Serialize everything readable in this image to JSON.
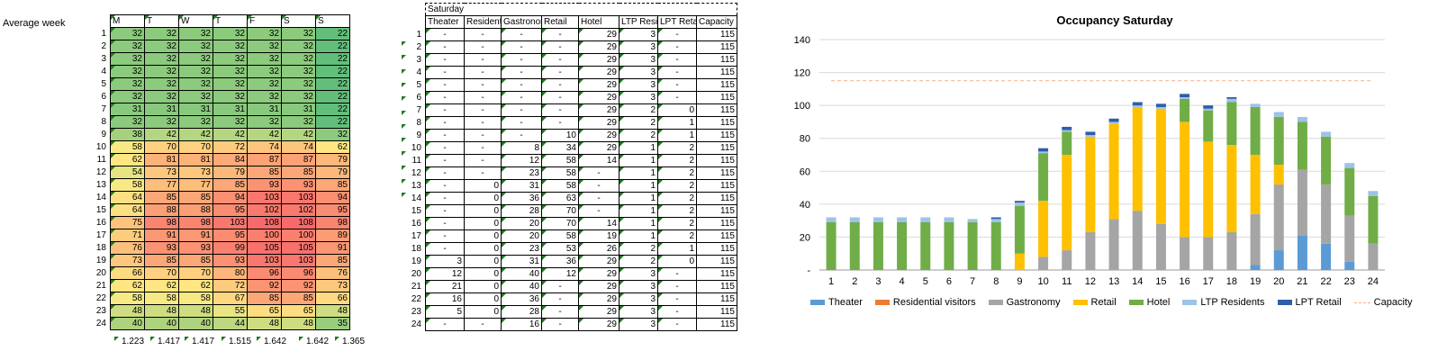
{
  "sheet_label": "Average week",
  "avg_table": {
    "days": [
      "M",
      "T",
      "W",
      "T",
      "F",
      "S",
      "S"
    ],
    "rows": [
      [
        32,
        32,
        32,
        32,
        32,
        32,
        22
      ],
      [
        32,
        32,
        32,
        32,
        32,
        32,
        22
      ],
      [
        32,
        32,
        32,
        32,
        32,
        32,
        22
      ],
      [
        32,
        32,
        32,
        32,
        32,
        32,
        22
      ],
      [
        32,
        32,
        32,
        32,
        32,
        32,
        22
      ],
      [
        32,
        32,
        32,
        32,
        32,
        32,
        22
      ],
      [
        31,
        31,
        31,
        31,
        31,
        31,
        22
      ],
      [
        32,
        32,
        32,
        32,
        32,
        32,
        22
      ],
      [
        38,
        42,
        42,
        42,
        42,
        42,
        32
      ],
      [
        58,
        70,
        70,
        72,
        74,
        74,
        62
      ],
      [
        62,
        81,
        81,
        84,
        87,
        87,
        79
      ],
      [
        54,
        73,
        73,
        79,
        85,
        85,
        79
      ],
      [
        58,
        77,
        77,
        85,
        93,
        93,
        85
      ],
      [
        64,
        85,
        85,
        94,
        103,
        103,
        94
      ],
      [
        64,
        88,
        88,
        95,
        102,
        102,
        95
      ],
      [
        75,
        98,
        98,
        103,
        108,
        108,
        98
      ],
      [
        71,
        91,
        91,
        95,
        100,
        100,
        89
      ],
      [
        76,
        93,
        93,
        99,
        105,
        105,
        91
      ],
      [
        73,
        85,
        85,
        93,
        103,
        103,
        85
      ],
      [
        66,
        70,
        70,
        80,
        96,
        96,
        76
      ],
      [
        62,
        62,
        62,
        72,
        92,
        92,
        73
      ],
      [
        58,
        58,
        58,
        67,
        85,
        85,
        66
      ],
      [
        48,
        48,
        48,
        55,
        65,
        65,
        48
      ],
      [
        40,
        40,
        40,
        44,
        48,
        48,
        35
      ]
    ],
    "totals": [
      "1.223",
      "1.417",
      "1.417",
      "1.515",
      "1.642",
      "1.642",
      "1.365"
    ]
  },
  "sat_table": {
    "title": "Saturday",
    "headers": [
      "Theater",
      "Residents",
      "Gastronomy",
      "Retail",
      "Hotel",
      "LTP Residents",
      "LPT Retail",
      "Capacity"
    ],
    "rows": [
      [
        "-",
        "-",
        "-",
        "-",
        "29",
        "3",
        "-",
        "115"
      ],
      [
        "-",
        "-",
        "-",
        "-",
        "29",
        "3",
        "-",
        "115"
      ],
      [
        "-",
        "-",
        "-",
        "-",
        "29",
        "3",
        "-",
        "115"
      ],
      [
        "-",
        "-",
        "-",
        "-",
        "29",
        "3",
        "-",
        "115"
      ],
      [
        "-",
        "-",
        "-",
        "-",
        "29",
        "3",
        "-",
        "115"
      ],
      [
        "-",
        "-",
        "-",
        "-",
        "29",
        "3",
        "-",
        "115"
      ],
      [
        "-",
        "-",
        "-",
        "-",
        "29",
        "2",
        "0",
        "115"
      ],
      [
        "-",
        "-",
        "-",
        "-",
        "29",
        "2",
        "1",
        "115"
      ],
      [
        "-",
        "-",
        "-",
        "10",
        "29",
        "2",
        "1",
        "115"
      ],
      [
        "-",
        "-",
        "8",
        "34",
        "29",
        "1",
        "2",
        "115"
      ],
      [
        "-",
        "-",
        "12",
        "58",
        "14",
        "1",
        "2",
        "115"
      ],
      [
        "-",
        "-",
        "23",
        "58",
        "-",
        "1",
        "2",
        "115"
      ],
      [
        "-",
        "0",
        "31",
        "58",
        "-",
        "1",
        "2",
        "115"
      ],
      [
        "-",
        "0",
        "36",
        "63",
        "-",
        "1",
        "2",
        "115"
      ],
      [
        "-",
        "0",
        "28",
        "70",
        "-",
        "1",
        "2",
        "115"
      ],
      [
        "-",
        "0",
        "20",
        "70",
        "14",
        "1",
        "2",
        "115"
      ],
      [
        "-",
        "0",
        "20",
        "58",
        "19",
        "1",
        "2",
        "115"
      ],
      [
        "-",
        "0",
        "23",
        "53",
        "26",
        "2",
        "1",
        "115"
      ],
      [
        "3",
        "0",
        "31",
        "36",
        "29",
        "2",
        "0",
        "115"
      ],
      [
        "12",
        "0",
        "40",
        "12",
        "29",
        "3",
        "-",
        "115"
      ],
      [
        "21",
        "0",
        "40",
        "-",
        "29",
        "3",
        "-",
        "115"
      ],
      [
        "16",
        "0",
        "36",
        "-",
        "29",
        "3",
        "-",
        "115"
      ],
      [
        "5",
        "0",
        "28",
        "-",
        "29",
        "3",
        "-",
        "115"
      ],
      [
        "-",
        "-",
        "16",
        "-",
        "29",
        "3",
        "-",
        "115"
      ]
    ]
  },
  "chart_data": {
    "type": "bar",
    "stacked": true,
    "title": "Occupancy Saturday",
    "categories": [
      "1",
      "2",
      "3",
      "4",
      "5",
      "6",
      "7",
      "8",
      "9",
      "10",
      "11",
      "12",
      "13",
      "14",
      "15",
      "16",
      "17",
      "18",
      "19",
      "20",
      "21",
      "22",
      "23",
      "24"
    ],
    "ylim": [
      0,
      140
    ],
    "yticks": [
      "-",
      "20",
      "40",
      "60",
      "80",
      "100",
      "120",
      "140"
    ],
    "grid": true,
    "legend_position": "bottom",
    "series": [
      {
        "name": "Theater",
        "color": "#5b9bd5",
        "values": [
          0,
          0,
          0,
          0,
          0,
          0,
          0,
          0,
          0,
          0,
          0,
          0,
          0,
          0,
          0,
          0,
          0,
          0,
          3,
          12,
          21,
          16,
          5,
          0
        ]
      },
      {
        "name": "Residential visitors",
        "color": "#ed7d31",
        "values": [
          0,
          0,
          0,
          0,
          0,
          0,
          0,
          0,
          0,
          0,
          0,
          0,
          0,
          0,
          0,
          0,
          0,
          0,
          0,
          0,
          0,
          0,
          0,
          0
        ]
      },
      {
        "name": "Gastronomy",
        "color": "#a5a5a5",
        "values": [
          0,
          0,
          0,
          0,
          0,
          0,
          0,
          0,
          0,
          8,
          12,
          23,
          31,
          36,
          28,
          20,
          20,
          23,
          31,
          40,
          40,
          36,
          28,
          16
        ]
      },
      {
        "name": "Retail",
        "color": "#ffc000",
        "values": [
          0,
          0,
          0,
          0,
          0,
          0,
          0,
          0,
          10,
          34,
          58,
          58,
          58,
          63,
          70,
          70,
          58,
          53,
          36,
          12,
          0,
          0,
          0,
          0
        ]
      },
      {
        "name": "Hotel",
        "color": "#70ad47",
        "values": [
          29,
          29,
          29,
          29,
          29,
          29,
          29,
          29,
          29,
          29,
          14,
          0,
          0,
          0,
          0,
          14,
          19,
          26,
          29,
          29,
          29,
          29,
          29,
          29
        ]
      },
      {
        "name": "LTP Residents",
        "color": "#9dc3e6",
        "values": [
          3,
          3,
          3,
          3,
          3,
          3,
          2,
          2,
          2,
          1,
          1,
          1,
          1,
          1,
          1,
          1,
          1,
          2,
          2,
          3,
          3,
          3,
          3,
          3
        ]
      },
      {
        "name": "LPT Retail",
        "color": "#2e5ea8",
        "values": [
          0,
          0,
          0,
          0,
          0,
          0,
          0,
          1,
          1,
          2,
          2,
          2,
          2,
          2,
          2,
          2,
          2,
          1,
          0,
          0,
          0,
          0,
          0,
          0
        ]
      }
    ],
    "capacity": {
      "name": "Capacity",
      "color": "#f4b183",
      "value": 115
    }
  }
}
